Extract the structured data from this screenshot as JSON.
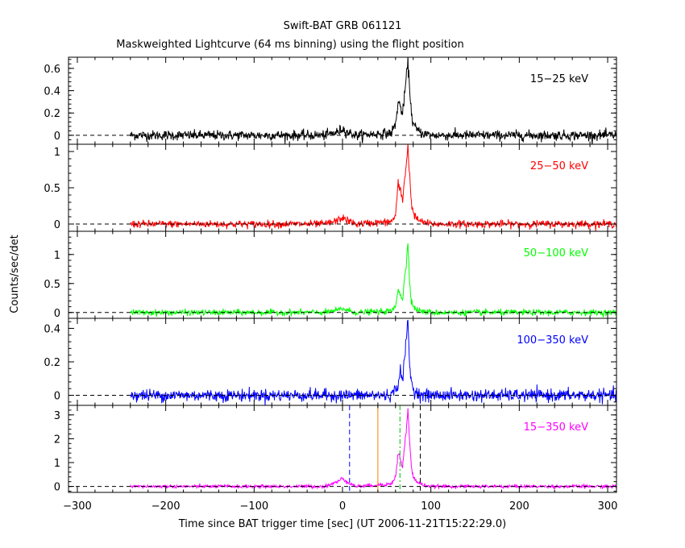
{
  "figure": {
    "title": "Swift-BAT GRB 061121",
    "subtitle": "Maskweighted Lightcurve (64 ms binning) using the flight position",
    "xlabel": "Time since BAT trigger time [sec] (UT 2006-11-21T15:22:29.0)",
    "ylabel": "Counts/sec/det"
  },
  "chart_data": {
    "type": "line",
    "title": "Swift-BAT GRB 061121",
    "subtitle": "Maskweighted Lightcurve (64 ms binning) using the flight position",
    "xlabel": "Time since BAT trigger time [sec] (UT 2006-11-21T15:22:29.0)",
    "ylabel": "Counts/sec/det",
    "xlim": [
      -310,
      310
    ],
    "x_ticks": [
      -300,
      -200,
      -100,
      0,
      100,
      200,
      300
    ],
    "x_tick_labels": [
      "−300",
      "−200",
      "−100",
      "0",
      "100",
      "200",
      "300"
    ],
    "data_x_range": [
      -240,
      310
    ],
    "panels": [
      {
        "label": "15−25 keV",
        "color": "#000000",
        "ylim": [
          -0.08,
          0.7
        ],
        "y_ticks": [
          0,
          0.2,
          0.4,
          0.6
        ],
        "y_tick_labels": [
          "0",
          "0.2",
          "0.4",
          "0.6"
        ],
        "noise_sigma": 0.022,
        "features": [
          {
            "t": [
              -240,
              -20,
              -5,
              0,
              5,
              15,
              55,
              60,
              63,
              66,
              68,
              70,
              72,
              74,
              76,
              78,
              80,
              84,
              90,
              100,
              310
            ],
            "rate": [
              0.0,
              0.0,
              0.03,
              0.06,
              0.03,
              0.0,
              0.02,
              0.1,
              0.3,
              0.25,
              0.18,
              0.35,
              0.5,
              0.65,
              0.42,
              0.2,
              0.1,
              0.05,
              0.02,
              0.0,
              0.0
            ]
          }
        ]
      },
      {
        "label": "25−50 keV",
        "color": "#ff0000",
        "ylim": [
          -0.1,
          1.1
        ],
        "y_ticks": [
          0,
          0.5,
          1
        ],
        "y_tick_labels": [
          "0",
          "0.5",
          "1"
        ],
        "noise_sigma": 0.025,
        "features": [
          {
            "t": [
              -240,
              -20,
              -5,
              0,
              5,
              15,
              55,
              60,
              63,
              66,
              68,
              70,
              72,
              74,
              76,
              78,
              80,
              84,
              90,
              100,
              310
            ],
            "rate": [
              0.0,
              0.0,
              0.05,
              0.09,
              0.05,
              0.0,
              0.03,
              0.12,
              0.55,
              0.45,
              0.3,
              0.62,
              0.8,
              1.08,
              0.65,
              0.3,
              0.15,
              0.07,
              0.03,
              0.0,
              0.0
            ]
          }
        ]
      },
      {
        "label": "50−100 keV",
        "color": "#00ff00",
        "ylim": [
          -0.1,
          1.4
        ],
        "y_ticks": [
          0,
          0.5,
          1
        ],
        "y_tick_labels": [
          "0",
          "0.5",
          "1"
        ],
        "noise_sigma": 0.025,
        "features": [
          {
            "t": [
              -240,
              -20,
              -5,
              0,
              5,
              15,
              55,
              60,
              63,
              66,
              68,
              70,
              72,
              74,
              76,
              78,
              80,
              84,
              90,
              100,
              310
            ],
            "rate": [
              0.0,
              0.0,
              0.04,
              0.07,
              0.04,
              0.0,
              0.02,
              0.1,
              0.42,
              0.3,
              0.22,
              0.55,
              0.8,
              1.25,
              0.5,
              0.22,
              0.1,
              0.05,
              0.02,
              0.0,
              0.0
            ]
          }
        ]
      },
      {
        "label": "100−350 keV",
        "color": "#0000ff",
        "ylim": [
          -0.06,
          0.46
        ],
        "y_ticks": [
          0,
          0.2,
          0.4
        ],
        "y_tick_labels": [
          "0",
          "0.2",
          "0.4"
        ],
        "noise_sigma": 0.018,
        "features": [
          {
            "t": [
              -240,
              55,
              62,
              65,
              68,
              70,
              72,
              74,
              76,
              78,
              82,
              90,
              310
            ],
            "rate": [
              0.0,
              0.0,
              0.05,
              0.14,
              0.1,
              0.2,
              0.32,
              0.44,
              0.18,
              0.07,
              0.02,
              0.0,
              0.0
            ]
          }
        ]
      },
      {
        "label": "15−350 keV",
        "color": "#ff00ff",
        "ylim": [
          -0.25,
          3.4
        ],
        "y_ticks": [
          0,
          1,
          2,
          3
        ],
        "y_tick_labels": [
          "0",
          "1",
          "2",
          "3"
        ],
        "noise_sigma": 0.035,
        "features": [
          {
            "t": [
              -240,
              -20,
              -5,
              0,
              5,
              15,
              55,
              60,
              63,
              66,
              68,
              70,
              72,
              74,
              76,
              78,
              80,
              84,
              90,
              100,
              310
            ],
            "rate": [
              0.0,
              0.0,
              0.2,
              0.35,
              0.2,
              0.0,
              0.1,
              0.4,
              1.4,
              1.1,
              0.8,
              1.6,
              2.3,
              3.2,
              1.8,
              0.8,
              0.4,
              0.2,
              0.08,
              0.0,
              0.0
            ]
          }
        ],
        "markers": [
          {
            "t": 8,
            "color": "#0000ff",
            "style": "dashed"
          },
          {
            "t": 40,
            "color": "#ff8000",
            "style": "solid"
          },
          {
            "t": 65,
            "color": "#00c000",
            "style": "dashdot"
          },
          {
            "t": 88,
            "color": "#000000",
            "style": "dashed"
          }
        ]
      }
    ],
    "grid": false,
    "legend": "none"
  }
}
